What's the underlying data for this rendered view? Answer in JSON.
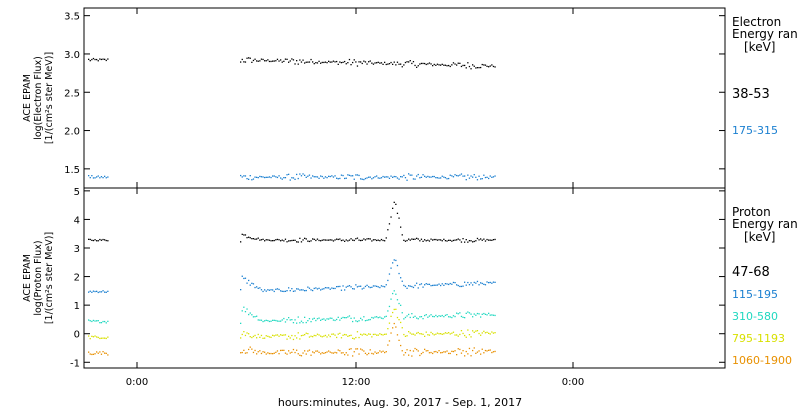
{
  "chart_data": [
    {
      "type": "scatter",
      "title": "",
      "ylabel_lines": [
        "ACE EPAM",
        "log(Electron Flux)",
        "[1/(cm²s ster MeV)]"
      ],
      "ylim": [
        1.25,
        3.6
      ],
      "yticks": [
        "3.5",
        "3.0",
        "2.5",
        "2.0",
        "1.5"
      ],
      "yticks_values": [
        3.5,
        3.0,
        2.5,
        2.0,
        1.5
      ],
      "legend_title": [
        "Electron",
        "Energy ran",
        "[keV]"
      ],
      "series": [
        {
          "name": "38-53",
          "color": "#000000",
          "level": 2.93,
          "level_late": 2.85,
          "noise": 0.03
        },
        {
          "name": "175-315",
          "color": "#1a7fd0",
          "level": 1.4,
          "level_late": 1.4,
          "noise": 0.03
        }
      ]
    },
    {
      "type": "scatter",
      "title": "",
      "ylabel_lines": [
        "ACE EPAM",
        "log(Proton Flux)",
        "[1/(cm²s ster MeV)]"
      ],
      "ylim": [
        -1.2,
        5.1
      ],
      "yticks": [
        "5",
        "4",
        "3",
        "2",
        "1",
        "0",
        "-1"
      ],
      "yticks_values": [
        5,
        4,
        3,
        2,
        1,
        0,
        -1
      ],
      "legend_title": [
        "Proton",
        "Energy ran",
        "[keV]"
      ],
      "series": [
        {
          "name": "47-68",
          "color": "#000000",
          "level": 3.3,
          "level_late": 3.3,
          "noise": 0.05
        },
        {
          "name": "115-195",
          "color": "#1a7fd0",
          "level": 1.5,
          "level_late": 1.8,
          "noise": 0.07
        },
        {
          "name": "310-580",
          "color": "#20d8c0",
          "level": 0.45,
          "level_late": 0.7,
          "noise": 0.08
        },
        {
          "name": "795-1193",
          "color": "#d8e000",
          "level": -0.1,
          "level_late": 0.05,
          "noise": 0.09
        },
        {
          "name": "1060-1900",
          "color": "#e89000",
          "level": -0.65,
          "level_late": -0.6,
          "noise": 0.1
        }
      ]
    }
  ],
  "x_axis": {
    "label": "hours:minutes, Aug. 30, 2017 - Sep.  1, 2017",
    "tick_labels": [
      "0:00",
      "12:00",
      "0:00"
    ]
  }
}
